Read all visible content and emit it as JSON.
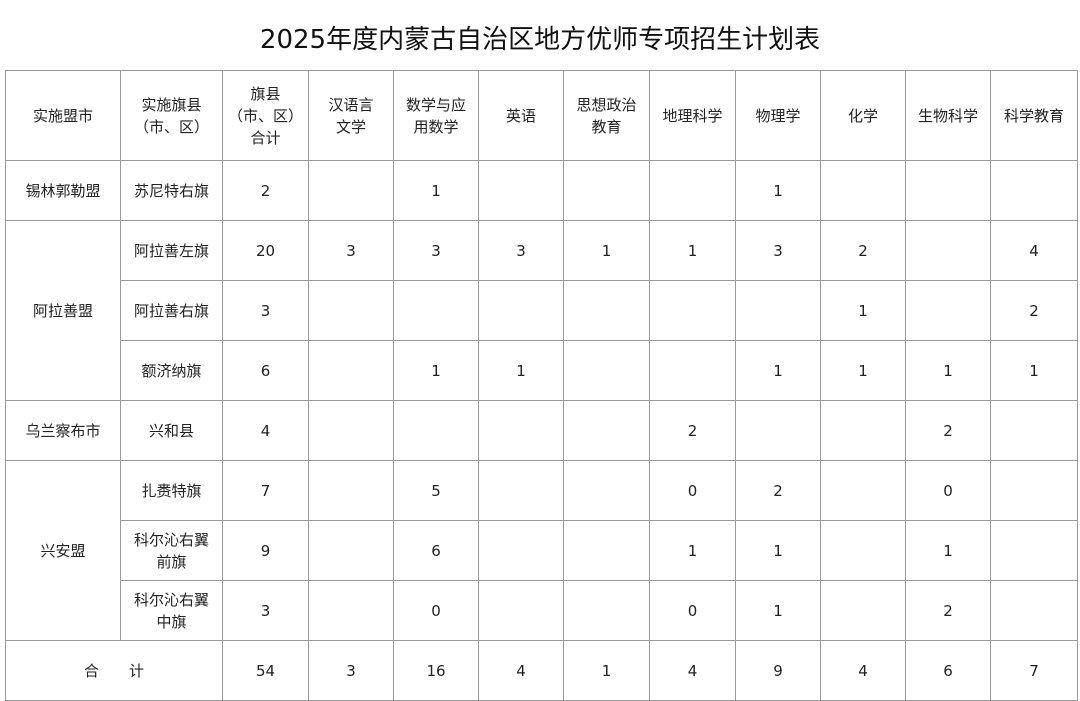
{
  "title": "2025年度内蒙古自治区地方优师专项招生计划表",
  "headers": [
    "实施盟市",
    "实施旗县\n（市、区）",
    "旗县\n（市、区）\n合计",
    "汉语言\n文学",
    "数学与应\n用数学",
    "英语",
    "思想政治\n教育",
    "地理科学",
    "物理学",
    "化学",
    "生物科学",
    "科学教育"
  ],
  "groups": [
    {
      "region": "锡林郭勒盟",
      "rows": [
        {
          "county": "苏尼特右旗",
          "values": [
            "2",
            "",
            "1",
            "",
            "",
            "",
            "1",
            "",
            "",
            ""
          ]
        }
      ]
    },
    {
      "region": "阿拉善盟",
      "rows": [
        {
          "county": "阿拉善左旗",
          "values": [
            "20",
            "3",
            "3",
            "3",
            "1",
            "1",
            "3",
            "2",
            "",
            "4"
          ]
        },
        {
          "county": "阿拉善右旗",
          "values": [
            "3",
            "",
            "",
            "",
            "",
            "",
            "",
            "1",
            "",
            "2"
          ]
        },
        {
          "county": "额济纳旗",
          "values": [
            "6",
            "",
            "1",
            "1",
            "",
            "",
            "1",
            "1",
            "1",
            "1"
          ]
        }
      ]
    },
    {
      "region": "乌兰察布市",
      "rows": [
        {
          "county": "兴和县",
          "values": [
            "4",
            "",
            "",
            "",
            "",
            "2",
            "",
            "",
            "2",
            ""
          ]
        }
      ]
    },
    {
      "region": "兴安盟",
      "rows": [
        {
          "county": "扎赉特旗",
          "values": [
            "7",
            "",
            "5",
            "",
            "",
            "0",
            "2",
            "",
            "0",
            ""
          ]
        },
        {
          "county": "科尔沁右翼\n前旗",
          "values": [
            "9",
            "",
            "6",
            "",
            "",
            "1",
            "1",
            "",
            "1",
            ""
          ]
        },
        {
          "county": "科尔沁右翼\n中旗",
          "values": [
            "3",
            "",
            "0",
            "",
            "",
            "0",
            "1",
            "",
            "2",
            ""
          ]
        }
      ]
    }
  ],
  "total": {
    "label": "合　　计",
    "values": [
      "54",
      "3",
      "16",
      "4",
      "1",
      "4",
      "9",
      "4",
      "6",
      "7"
    ]
  }
}
